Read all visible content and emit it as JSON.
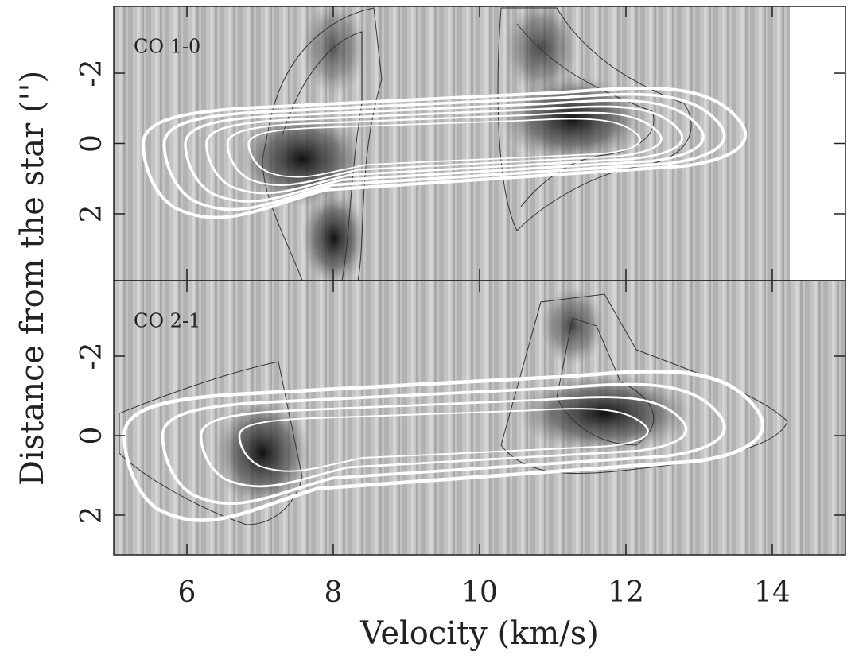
{
  "chart_data": [
    {
      "type": "pv-diagram",
      "label": "CO 1-0",
      "ylabel": "Distance from the star ('')",
      "xlim": [
        5,
        15
      ],
      "xticks": [
        6,
        8,
        10,
        12,
        14
      ],
      "ylim": [
        -3.9,
        3.9
      ],
      "yticks": [
        -2,
        0,
        2
      ],
      "y_inverted": true
    },
    {
      "type": "pv-diagram",
      "label": "CO 2-1",
      "xlabel": "Velocity (km/s)",
      "xlim": [
        5,
        15
      ],
      "xticks": [
        6,
        8,
        10,
        12,
        14
      ],
      "ylim": [
        -3.9,
        3
      ],
      "yticks": [
        -2,
        0,
        2
      ],
      "y_inverted": true
    }
  ]
}
